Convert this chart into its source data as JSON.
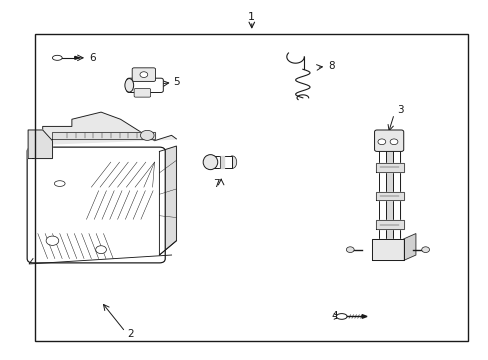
{
  "background_color": "#ffffff",
  "line_color": "#1a1a1a",
  "fig_width": 4.89,
  "fig_height": 3.6,
  "dpi": 100,
  "border": [
    0.07,
    0.05,
    0.96,
    0.91
  ]
}
